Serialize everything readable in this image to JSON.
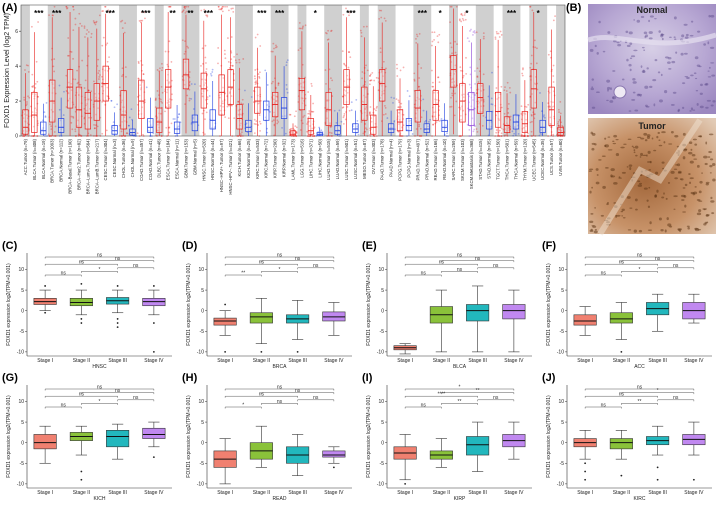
{
  "panel_labels": [
    "(A)",
    "(B)",
    "(C)",
    "(D)",
    "(E)",
    "(F)",
    "(G)",
    "(H)",
    "(I)",
    "(J)"
  ],
  "image_panel": {
    "top_label": "Normal",
    "bottom_label": "Tumor"
  },
  "colors": {
    "tumor": "#e8201c",
    "normal": "#1f3fe0",
    "metastasis": "#8a3fd6",
    "shade": "#d0d0d0",
    "stage1": "#f08070",
    "stage2": "#8ac23a",
    "stage3": "#22b7bd",
    "stage4": "#c088f0"
  },
  "chart_data": [
    {
      "type": "box",
      "id": "A",
      "ylabel": "FOXD1 Expression Level (log2 TPM)",
      "ylim": [
        0,
        7.5
      ],
      "yticks": [
        0,
        2,
        4,
        6
      ],
      "categories": [
        "ACC.Tumor (n=79)",
        "BLCA.Tumor (n=408)",
        "BLCA.Normal (n=19)",
        "BRCA.Tumor (n=1093)",
        "BRCA.Normal (n=112)",
        "BRCA−Basal.Tumor (n=190)",
        "BRCA−Her2.Tumor (n=82)",
        "BRCA−LumA.Tumor (n=564)",
        "BRCA−LumB.Tumor (n=217)",
        "CESC.Tumor (n=304)",
        "CESC.Normal (n=3)",
        "CHOL.Tumor (n=36)",
        "CHOL.Normal (n=9)",
        "COAD.Tumor (n=457)",
        "COAD.Normal (n=41)",
        "DLBC.Tumor (n=48)",
        "ESCA.Tumor (n=184)",
        "ESCA.Normal (n=11)",
        "GBM.Tumor (n=153)",
        "GBM.Normal (n=5)",
        "HNSC.Tumor (n=520)",
        "HNSC.Normal (n=44)",
        "HNSC−HPV+.Tumor (n=97)",
        "HNSC−HPV−.Tumor (n=421)",
        "KICH.Tumor (n=66)",
        "KICH.Normal (n=25)",
        "KIRC.Tumor (n=533)",
        "KIRC.Normal (n=72)",
        "KIRP.Tumor (n=290)",
        "KIRP.Normal (n=32)",
        "LAML.Tumor (n=173)",
        "LGG.Tumor (n=516)",
        "LIHC.Tumor (n=371)",
        "LIHC.Normal (n=50)",
        "LUAD.Tumor (n=515)",
        "LUAD.Normal (n=59)",
        "LUSC.Tumor (n=501)",
        "LUSC.Normal (n=51)",
        "MESO.Tumor (n=87)",
        "OV.Tumor (n=303)",
        "PAAD.Tumor (n=178)",
        "PAAD.Normal (n=4)",
        "PCPG.Tumor (n=179)",
        "PCPG.Normal (n=3)",
        "PRAD.Tumor (n=497)",
        "PRAD.Normal (n=52)",
        "READ.Tumor (n=166)",
        "READ.Normal (n=10)",
        "SARC.Tumor (n=259)",
        "SKCM.Tumor (n=103)",
        "SKCM.Metastasis (n=368)",
        "STAD.Tumor (n=415)",
        "STAD.Normal (n=35)",
        "TGCT.Tumor (n=150)",
        "THCA.Tumor (n=501)",
        "THCA.Normal (n=59)",
        "THYM.Tumor (n=120)",
        "UCEC.Tumor (n=545)",
        "UCEC.Normal (n=35)",
        "UCS.Tumor (n=57)",
        "UVM.Tumor (n=80)"
      ],
      "group": [
        "T",
        "T",
        "N",
        "T",
        "N",
        "T",
        "T",
        "T",
        "T",
        "T",
        "N",
        "T",
        "N",
        "T",
        "N",
        "T",
        "T",
        "N",
        "T",
        "N",
        "T",
        "N",
        "T",
        "T",
        "T",
        "N",
        "T",
        "N",
        "T",
        "N",
        "T",
        "T",
        "T",
        "N",
        "T",
        "N",
        "T",
        "N",
        "T",
        "T",
        "T",
        "N",
        "T",
        "N",
        "T",
        "N",
        "T",
        "N",
        "T",
        "T",
        "M",
        "T",
        "N",
        "T",
        "T",
        "N",
        "T",
        "T",
        "N",
        "T",
        "T"
      ],
      "medians": [
        0.5,
        1.2,
        0.3,
        2.0,
        0.5,
        2.8,
        1.5,
        1.3,
        2.0,
        3.0,
        0.3,
        1.2,
        0.2,
        2.0,
        0.5,
        0.8,
        2.8,
        0.4,
        3.5,
        0.8,
        2.7,
        0.9,
        2.5,
        2.8,
        1.0,
        0.5,
        2.0,
        1.5,
        1.8,
        1.6,
        0.1,
        2.6,
        0.3,
        0.1,
        1.5,
        0.3,
        2.8,
        0.4,
        1.8,
        0.5,
        3.0,
        0.4,
        0.8,
        0.6,
        1.6,
        0.4,
        1.8,
        0.5,
        3.8,
        2.0,
        1.5,
        2.2,
        0.9,
        1.4,
        0.6,
        0.8,
        0.7,
        2.7,
        0.5,
        1.5,
        0.2
      ],
      "q1": [
        0.1,
        0.2,
        0.1,
        0.8,
        0.2,
        1.6,
        0.5,
        0.4,
        0.9,
        2.0,
        0.1,
        0.4,
        0.05,
        1.0,
        0.2,
        0.2,
        1.6,
        0.15,
        2.7,
        0.3,
        1.6,
        0.4,
        1.2,
        1.8,
        0.4,
        0.25,
        1.3,
        0.9,
        1.1,
        1.0,
        0.02,
        1.5,
        0.1,
        0.02,
        0.6,
        0.1,
        1.8,
        0.2,
        0.9,
        0.1,
        2.0,
        0.2,
        0.3,
        0.3,
        0.8,
        0.2,
        0.9,
        0.25,
        2.8,
        0.8,
        0.6,
        1.3,
        0.4,
        0.5,
        0.2,
        0.4,
        0.2,
        1.6,
        0.2,
        0.6,
        0.05
      ],
      "q3": [
        1.5,
        2.5,
        0.8,
        3.2,
        1.0,
        3.8,
        2.8,
        2.5,
        3.0,
        4.0,
        0.6,
        2.6,
        0.4,
        3.2,
        1.0,
        1.6,
        3.8,
        0.8,
        4.4,
        1.2,
        3.6,
        1.5,
        3.5,
        3.8,
        1.8,
        0.9,
        2.8,
        2.0,
        2.5,
        2.2,
        0.3,
        3.3,
        1.0,
        0.2,
        2.5,
        0.6,
        3.8,
        0.7,
        2.8,
        1.2,
        3.8,
        0.7,
        1.5,
        1.0,
        2.6,
        0.7,
        2.6,
        0.9,
        4.6,
        3.0,
        2.5,
        3.0,
        1.4,
        2.5,
        1.1,
        1.2,
        1.4,
        3.8,
        0.9,
        2.8,
        0.5
      ],
      "significance": [
        "",
        "***",
        "",
        "***",
        "",
        "",
        "",
        "",
        "",
        "***",
        "",
        "",
        "",
        "***",
        "",
        "",
        "**",
        "",
        "**",
        "",
        "***",
        "",
        "",
        "",
        "",
        "",
        "***",
        "",
        "***",
        "",
        "",
        "",
        "*",
        "",
        "",
        "",
        "***",
        "",
        "",
        "",
        "",
        "",
        "",
        "",
        "***",
        "",
        "*",
        "",
        "",
        "*",
        "",
        "",
        "",
        "",
        "***",
        "",
        "",
        "*",
        "",
        "",
        ""
      ]
    },
    {
      "type": "box",
      "id": "C",
      "xlabel": "HNSC",
      "ylabel": "FOXD1 expression log2(TPM+0.001)",
      "categories": [
        "Stage I",
        "Stage II",
        "Stage III",
        "Stage IV"
      ],
      "ylim": [
        -11,
        14
      ],
      "yticks": [
        -10,
        -5,
        0,
        5,
        10
      ],
      "boxes": [
        {
          "min": 0,
          "q1": 1.5,
          "median": 2.2,
          "q3": 3.0,
          "max": 5,
          "outliers": [
            -0.5,
            6
          ]
        },
        {
          "min": -1,
          "q1": 1.2,
          "median": 2.0,
          "q3": 3.0,
          "max": 5,
          "outliers": [
            -3,
            -2,
            6.5
          ]
        },
        {
          "min": -0.5,
          "q1": 1.6,
          "median": 2.4,
          "q3": 3.2,
          "max": 5,
          "outliers": [
            -2,
            -3,
            -4,
            6
          ]
        },
        {
          "min": -1,
          "q1": 1.2,
          "median": 2.2,
          "q3": 3.0,
          "max": 5,
          "outliers": [
            -3,
            -10,
            6
          ]
        }
      ],
      "comparisons": [
        {
          "a": 0,
          "b": 1,
          "label": "ns"
        },
        {
          "a": 0,
          "b": 2,
          "label": "ns"
        },
        {
          "a": 0,
          "b": 3,
          "label": "ns"
        },
        {
          "a": 1,
          "b": 2,
          "label": "*"
        },
        {
          "a": 1,
          "b": 3,
          "label": "ns"
        },
        {
          "a": 2,
          "b": 3,
          "label": "ns"
        }
      ]
    },
    {
      "type": "box",
      "id": "D",
      "xlabel": "BRCA",
      "ylabel": "FOXD1 expression log2(TPM+0.001)",
      "categories": [
        "Stage I",
        "Stage II",
        "Stage III",
        "Stage IV"
      ],
      "ylim": [
        -11,
        14
      ],
      "yticks": [
        -10,
        -5,
        0,
        5,
        10
      ],
      "boxes": [
        {
          "min": -6,
          "q1": -3.5,
          "median": -2.5,
          "q3": -1.8,
          "max": 0,
          "outliers": [
            1.5,
            -10
          ]
        },
        {
          "min": -8,
          "q1": -3,
          "median": -1.5,
          "q3": -0.5,
          "max": 3,
          "outliers": [
            -10
          ]
        },
        {
          "min": -7,
          "q1": -3,
          "median": -2,
          "q3": -1,
          "max": 2.5,
          "outliers": [
            -10
          ]
        },
        {
          "min": -6,
          "q1": -2.5,
          "median": -1.5,
          "q3": -0.3,
          "max": 2,
          "outliers": []
        }
      ],
      "comparisons": [
        {
          "a": 0,
          "b": 1,
          "label": "**"
        },
        {
          "a": 0,
          "b": 2,
          "label": "ns"
        },
        {
          "a": 0,
          "b": 3,
          "label": "ns"
        },
        {
          "a": 1,
          "b": 2,
          "label": "*"
        },
        {
          "a": 1,
          "b": 3,
          "label": "ns"
        },
        {
          "a": 2,
          "b": 3,
          "label": "ns"
        }
      ]
    },
    {
      "type": "box",
      "id": "E",
      "xlabel": "BLCA",
      "ylabel": "FOXD1 expression log2(TPM+0.001)",
      "categories": [
        "Stage I",
        "Stage II",
        "Stage III",
        "Stage IV"
      ],
      "ylim": [
        -11,
        14
      ],
      "yticks": [
        -10,
        -5,
        0,
        5,
        10
      ],
      "boxes": [
        {
          "min": -10.5,
          "q1": -9.5,
          "median": -9.0,
          "q3": -8.5,
          "max": -8,
          "outliers": []
        },
        {
          "min": -10,
          "q1": -3,
          "median": -1,
          "q3": 1,
          "max": 5,
          "outliers": []
        },
        {
          "min": -10,
          "q1": -2.5,
          "median": 0,
          "q3": 1.5,
          "max": 6,
          "outliers": []
        },
        {
          "min": -10,
          "q1": -2,
          "median": 0,
          "q3": 1.5,
          "max": 5,
          "outliers": []
        }
      ],
      "comparisons": [
        {
          "a": 0,
          "b": 1,
          "label": "ns"
        },
        {
          "a": 0,
          "b": 2,
          "label": "ns"
        },
        {
          "a": 0,
          "b": 3,
          "label": "ns"
        },
        {
          "a": 1,
          "b": 2,
          "label": "ns"
        },
        {
          "a": 1,
          "b": 3,
          "label": "ns"
        },
        {
          "a": 2,
          "b": 3,
          "label": "ns"
        }
      ]
    },
    {
      "type": "box",
      "id": "F",
      "xlabel": "ACC",
      "ylabel": "FOXD1 expression log2(TPM+0.001)",
      "categories": [
        "Stage I",
        "Stage II",
        "Stage III",
        "Stage IV"
      ],
      "ylim": [
        -11,
        14
      ],
      "yticks": [
        -10,
        -5,
        0,
        5,
        10
      ],
      "boxes": [
        {
          "min": -6,
          "q1": -3.5,
          "median": -2.5,
          "q3": -1,
          "max": 1,
          "outliers": []
        },
        {
          "min": -7,
          "q1": -3,
          "median": -2,
          "q3": -0.5,
          "max": 2,
          "outliers": [
            -10
          ]
        },
        {
          "min": -5,
          "q1": -1,
          "median": 0.5,
          "q3": 2,
          "max": 4,
          "outliers": []
        },
        {
          "min": -3,
          "q1": -2,
          "median": 0,
          "q3": 2,
          "max": 4,
          "outliers": []
        }
      ],
      "comparisons": [
        {
          "a": 0,
          "b": 1,
          "label": "ns"
        },
        {
          "a": 0,
          "b": 2,
          "label": "ns"
        },
        {
          "a": 0,
          "b": 3,
          "label": "ns"
        },
        {
          "a": 1,
          "b": 2,
          "label": "*"
        },
        {
          "a": 1,
          "b": 3,
          "label": "ns"
        },
        {
          "a": 2,
          "b": 3,
          "label": "ns"
        }
      ]
    },
    {
      "type": "box",
      "id": "G",
      "xlabel": "KICH",
      "ylabel": "FOXD1 expression log2(TPM+0.001)",
      "categories": [
        "Stage I",
        "Stage II",
        "Stage III",
        "Stage IV"
      ],
      "ylim": [
        -11,
        14
      ],
      "yticks": [
        -10,
        -5,
        0,
        5,
        10
      ],
      "boxes": [
        {
          "min": -5,
          "q1": -1.5,
          "median": 0,
          "q3": 2,
          "max": 4,
          "outliers": []
        },
        {
          "min": -3,
          "q1": 0.5,
          "median": 1.5,
          "q3": 2.5,
          "max": 4,
          "outliers": [
            -7,
            -9
          ]
        },
        {
          "min": -4,
          "q1": -1,
          "median": 1.5,
          "q3": 3,
          "max": 4.5,
          "outliers": []
        },
        {
          "min": -1,
          "q1": 1,
          "median": 2,
          "q3": 3.5,
          "max": 5,
          "outliers": [
            -3.5
          ]
        }
      ],
      "comparisons": [
        {
          "a": 0,
          "b": 1,
          "label": "ns"
        },
        {
          "a": 0,
          "b": 2,
          "label": "ns"
        },
        {
          "a": 0,
          "b": 3,
          "label": "ns"
        },
        {
          "a": 1,
          "b": 2,
          "label": "*"
        },
        {
          "a": 1,
          "b": 3,
          "label": "ns"
        },
        {
          "a": 2,
          "b": 3,
          "label": "ns"
        }
      ]
    },
    {
      "type": "box",
      "id": "H",
      "xlabel": "READ",
      "ylabel": "FOXD1 expression log2(TPM+0.001)",
      "categories": [
        "Stage I",
        "Stage II",
        "Stage III",
        "Stage IV"
      ],
      "ylim": [
        -11,
        14
      ],
      "yticks": [
        -10,
        -5,
        0,
        5,
        10
      ],
      "boxes": [
        {
          "min": -10,
          "q1": -6,
          "median": -4,
          "q3": -2,
          "max": 1,
          "outliers": []
        },
        {
          "min": -6,
          "q1": -4,
          "median": -2,
          "q3": 0,
          "max": 4,
          "outliers": []
        },
        {
          "min": -8,
          "q1": -5,
          "median": -3,
          "q3": -1,
          "max": 2,
          "outliers": []
        },
        {
          "min": -5,
          "q1": -3.5,
          "median": -3,
          "q3": -2,
          "max": -1,
          "outliers": [
            -6
          ]
        }
      ],
      "comparisons": [
        {
          "a": 0,
          "b": 1,
          "label": "*"
        },
        {
          "a": 0,
          "b": 2,
          "label": "ns"
        },
        {
          "a": 0,
          "b": 3,
          "label": "ns"
        },
        {
          "a": 1,
          "b": 2,
          "label": "ns"
        },
        {
          "a": 1,
          "b": 3,
          "label": "ns"
        },
        {
          "a": 2,
          "b": 3,
          "label": "ns"
        }
      ]
    },
    {
      "type": "box",
      "id": "I",
      "xlabel": "KIRP",
      "ylabel": "FOXD1 expression log2(TPM+0.001)",
      "categories": [
        "Stage I",
        "Stage II",
        "Stage III",
        "Stage IV"
      ],
      "ylim": [
        -11,
        14
      ],
      "yticks": [
        -10,
        -5,
        0,
        5,
        10
      ],
      "boxes": [
        {
          "min": -9,
          "q1": -4,
          "median": -2.5,
          "q3": -1,
          "max": 2,
          "outliers": [
            -10
          ]
        },
        {
          "min": -6,
          "q1": -4,
          "median": -3,
          "q3": -2,
          "max": 1,
          "outliers": []
        },
        {
          "min": -7,
          "q1": -3,
          "median": -0.5,
          "q3": 1.5,
          "max": 5,
          "outliers": []
        },
        {
          "min": -4,
          "q1": -1,
          "median": 0.5,
          "q3": 2,
          "max": 5,
          "outliers": []
        }
      ],
      "comparisons": [
        {
          "a": 0,
          "b": 1,
          "label": "ns"
        },
        {
          "a": 0,
          "b": 2,
          "label": "****"
        },
        {
          "a": 0,
          "b": 3,
          "label": "*"
        },
        {
          "a": 1,
          "b": 2,
          "label": "**"
        },
        {
          "a": 1,
          "b": 3,
          "label": "**"
        },
        {
          "a": 2,
          "b": 3,
          "label": "ns"
        }
      ]
    },
    {
      "type": "box",
      "id": "J",
      "xlabel": "KIRC",
      "ylabel": "FOXD1 expression log2(TPM+0.001)",
      "categories": [
        "Stage I",
        "Stage II",
        "Stage III",
        "Stage IV"
      ],
      "ylim": [
        -11,
        14
      ],
      "yticks": [
        -10,
        -5,
        0,
        5,
        10
      ],
      "boxes": [
        {
          "min": -4,
          "q1": -1,
          "median": 0,
          "q3": 1,
          "max": 3,
          "outliers": [
            -5,
            -7,
            -9
          ]
        },
        {
          "min": -4,
          "q1": -1.5,
          "median": 0,
          "q3": 1,
          "max": 3,
          "outliers": [
            -8
          ]
        },
        {
          "min": -3,
          "q1": -0.5,
          "median": 0.5,
          "q3": 1.5,
          "max": 4,
          "outliers": [
            -6,
            -9
          ]
        },
        {
          "min": -3,
          "q1": -0.5,
          "median": 0.8,
          "q3": 2,
          "max": 5,
          "outliers": [
            -9
          ]
        }
      ],
      "comparisons": [
        {
          "a": 0,
          "b": 1,
          "label": "ns"
        },
        {
          "a": 0,
          "b": 2,
          "label": "ns"
        },
        {
          "a": 0,
          "b": 3,
          "label": "ns"
        },
        {
          "a": 1,
          "b": 2,
          "label": "**"
        },
        {
          "a": 1,
          "b": 3,
          "label": "*"
        },
        {
          "a": 2,
          "b": 3,
          "label": "ns"
        }
      ]
    }
  ]
}
